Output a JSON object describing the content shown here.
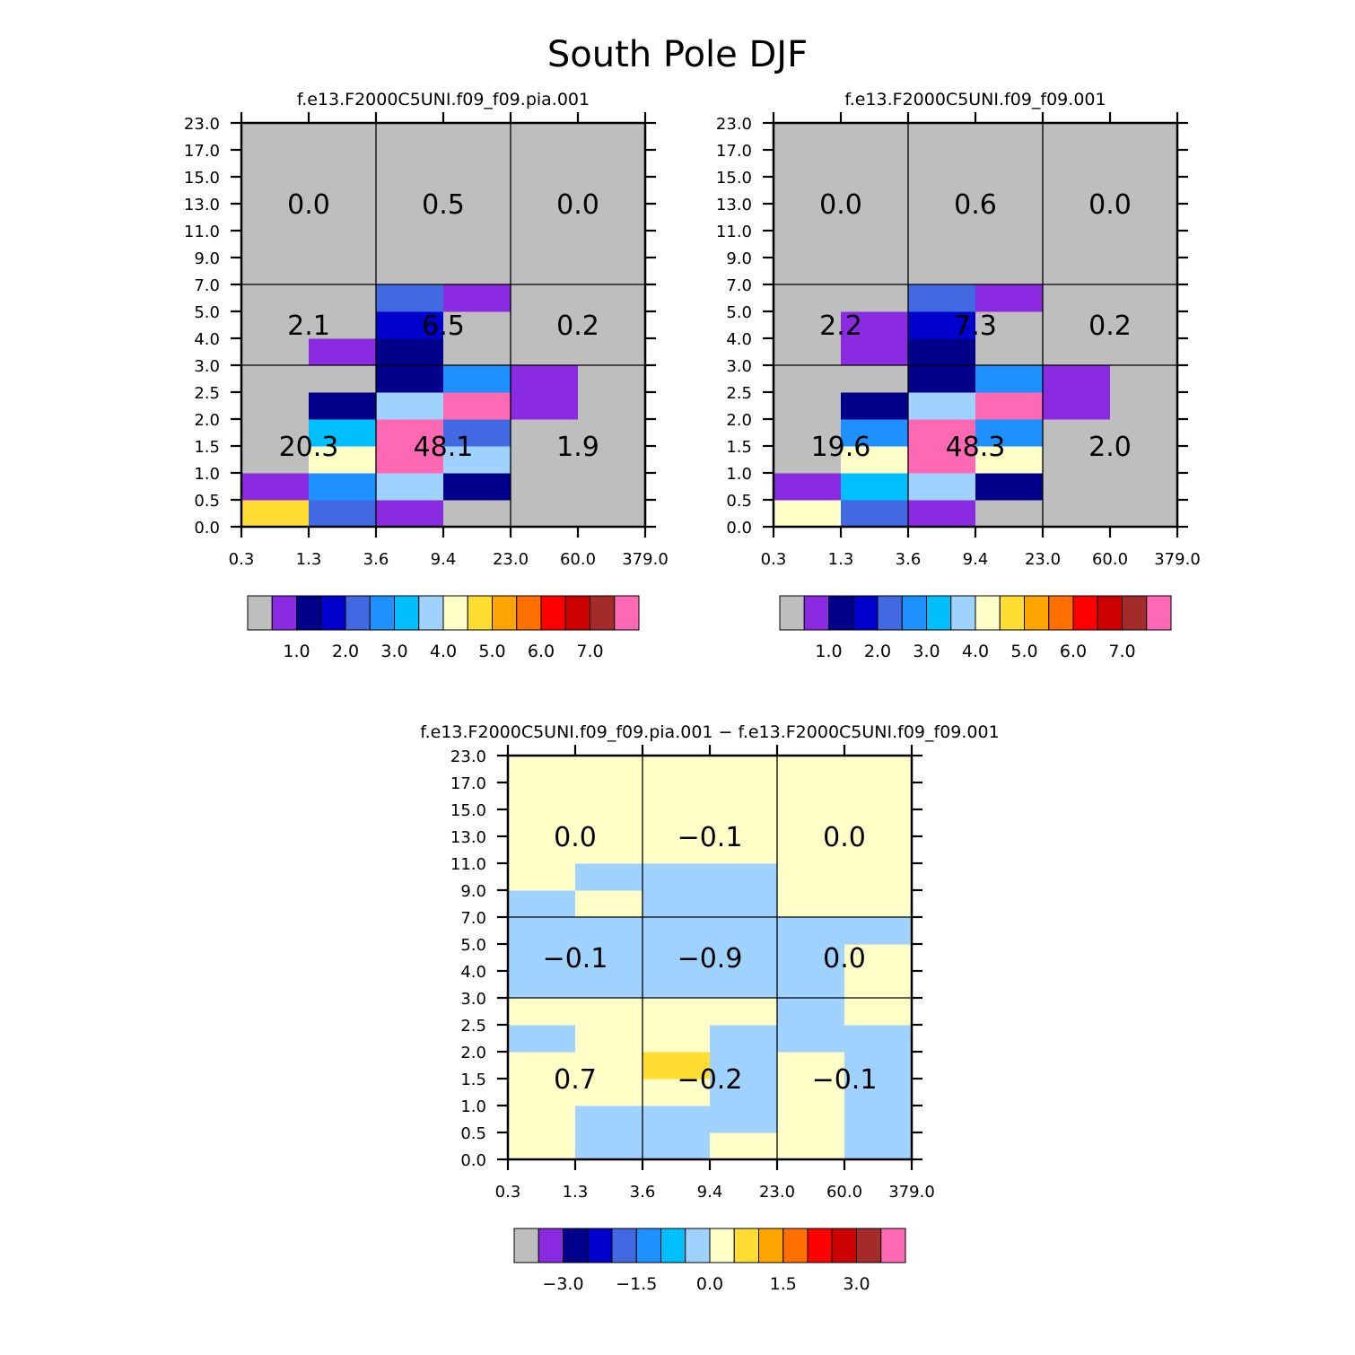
{
  "chart_data": {
    "type": "heatmap",
    "title": "South Pole DJF",
    "palette": [
      "#BEBEBE",
      "#8A2BE2",
      "#00008B",
      "#0000CD",
      "#4169E1",
      "#1E90FF",
      "#00BFFF",
      "#A0D2FF",
      "#FFFFC8",
      "#FFDD33",
      "#FFA500",
      "#FF7000",
      "#FF0000",
      "#CD0000",
      "#A52A2A",
      "#FF69B4"
    ],
    "x_edges": [
      "0.3",
      "1.3",
      "3.6",
      "9.4",
      "23.0",
      "60.0",
      "379.0"
    ],
    "y_edges": [
      "0.0",
      "0.5",
      "1.0",
      "1.5",
      "2.0",
      "2.5",
      "3.0",
      "4.0",
      "5.0",
      "7.0",
      "9.0",
      "11.0",
      "13.0",
      "15.0",
      "17.0",
      "23.0"
    ],
    "panels": [
      {
        "title": "f.e13.F2000C5UNI.f09_f09.pia.001",
        "colorbar_labels": [
          "1.0",
          "2.0",
          "3.0",
          "4.0",
          "5.0",
          "6.0",
          "7.0"
        ],
        "grid": [
          [
            9,
            4,
            1,
            0,
            0,
            0
          ],
          [
            1,
            5,
            7,
            2,
            0,
            0
          ],
          [
            0,
            8,
            15,
            7,
            0,
            0
          ],
          [
            0,
            6,
            15,
            4,
            0,
            0
          ],
          [
            0,
            2,
            7,
            15,
            1,
            0
          ],
          [
            0,
            0,
            2,
            5,
            1,
            0
          ],
          [
            0,
            1,
            2,
            0,
            0,
            0
          ],
          [
            0,
            0,
            3,
            0,
            0,
            0
          ],
          [
            0,
            0,
            4,
            1,
            0,
            0
          ],
          [
            0,
            0,
            0,
            0,
            0,
            0
          ],
          [
            0,
            0,
            0,
            0,
            0,
            0
          ],
          [
            0,
            0,
            0,
            0,
            0,
            0
          ],
          [
            0,
            0,
            0,
            0,
            0,
            0
          ],
          [
            0,
            0,
            0,
            0,
            0,
            0
          ],
          [
            0,
            0,
            0,
            0,
            0,
            0
          ]
        ],
        "totals": [
          [
            "20.3",
            "48.1",
            "1.9"
          ],
          [
            "2.1",
            "6.5",
            "0.2"
          ],
          [
            "0.0",
            "0.5",
            "0.0"
          ]
        ]
      },
      {
        "title": "f.e13.F2000C5UNI.f09_f09.001",
        "colorbar_labels": [
          "1.0",
          "2.0",
          "3.0",
          "4.0",
          "5.0",
          "6.0",
          "7.0"
        ],
        "grid": [
          [
            8,
            4,
            1,
            0,
            0,
            0
          ],
          [
            1,
            6,
            7,
            2,
            0,
            0
          ],
          [
            0,
            8,
            15,
            8,
            0,
            0
          ],
          [
            0,
            5,
            15,
            5,
            0,
            0
          ],
          [
            0,
            2,
            7,
            15,
            1,
            0
          ],
          [
            0,
            0,
            2,
            5,
            1,
            0
          ],
          [
            0,
            1,
            2,
            0,
            0,
            0
          ],
          [
            0,
            1,
            3,
            0,
            0,
            0
          ],
          [
            0,
            0,
            4,
            1,
            0,
            0
          ],
          [
            0,
            0,
            0,
            0,
            0,
            0
          ],
          [
            0,
            0,
            0,
            0,
            0,
            0
          ],
          [
            0,
            0,
            0,
            0,
            0,
            0
          ],
          [
            0,
            0,
            0,
            0,
            0,
            0
          ],
          [
            0,
            0,
            0,
            0,
            0,
            0
          ],
          [
            0,
            0,
            0,
            0,
            0,
            0
          ]
        ],
        "totals": [
          [
            "19.6",
            "48.3",
            "2.0"
          ],
          [
            "2.2",
            "7.3",
            "0.2"
          ],
          [
            "0.0",
            "0.6",
            "0.0"
          ]
        ]
      },
      {
        "title": "f.e13.F2000C5UNI.f09_f09.pia.001 − f.e13.F2000C5UNI.f09_f09.001",
        "colorbar_labels": [
          "−3.0",
          "−1.5",
          "0.0",
          "1.5",
          "3.0"
        ],
        "grid": [
          [
            8,
            7,
            7,
            8,
            8,
            7
          ],
          [
            8,
            7,
            7,
            7,
            8,
            7
          ],
          [
            8,
            8,
            8,
            7,
            8,
            7
          ],
          [
            8,
            8,
            9,
            7,
            8,
            7
          ],
          [
            7,
            8,
            8,
            7,
            7,
            7
          ],
          [
            8,
            8,
            8,
            8,
            7,
            8
          ],
          [
            7,
            7,
            7,
            7,
            7,
            8
          ],
          [
            7,
            7,
            7,
            7,
            7,
            8
          ],
          [
            7,
            7,
            7,
            7,
            7,
            7
          ],
          [
            7,
            8,
            7,
            7,
            8,
            8
          ],
          [
            8,
            7,
            7,
            7,
            8,
            8
          ],
          [
            8,
            8,
            8,
            8,
            8,
            8
          ],
          [
            8,
            8,
            8,
            8,
            8,
            8
          ],
          [
            8,
            8,
            8,
            8,
            8,
            8
          ],
          [
            8,
            8,
            8,
            8,
            8,
            8
          ]
        ],
        "totals": [
          [
            "0.7",
            "−0.2",
            "−0.1"
          ],
          [
            "−0.1",
            "−0.9",
            "0.0"
          ],
          [
            "0.0",
            "−0.1",
            "0.0"
          ]
        ]
      }
    ]
  }
}
